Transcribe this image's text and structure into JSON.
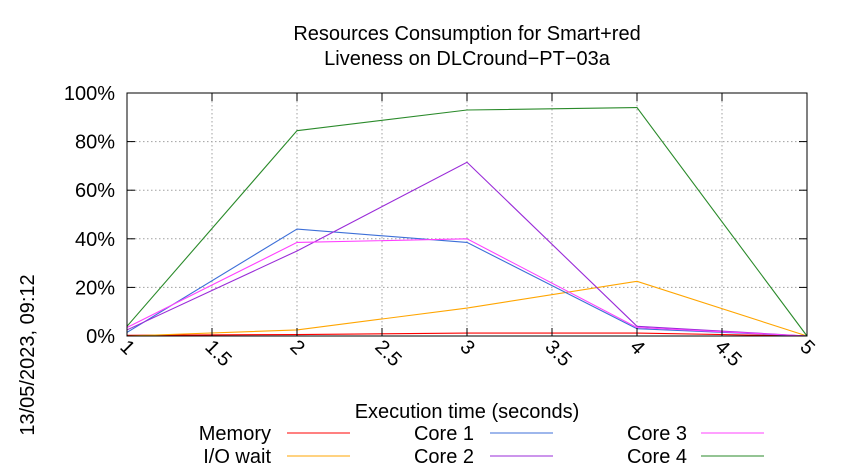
{
  "chart_data": {
    "type": "line",
    "title": [
      "Resources Consumption for Smart+red",
      "Liveness on DLCround−PT−03a"
    ],
    "xlabel": "Execution time (seconds)",
    "ylabel": "",
    "side_label": "13/05/2023, 09:12",
    "xlim": [
      1,
      5
    ],
    "ylim": [
      0,
      100
    ],
    "x_ticks": [
      "1",
      "1.5",
      "2",
      "2.5",
      "3",
      "3.5",
      "4",
      "4.5",
      "5"
    ],
    "y_ticks": [
      "0%",
      "20%",
      "40%",
      "60%",
      "80%",
      "100%"
    ],
    "grid": true,
    "legend_position": "bottom",
    "x": [
      1,
      2,
      3,
      4,
      5
    ],
    "series": [
      {
        "name": "Memory",
        "color": "#ff0000",
        "values": [
          0.3,
          0.6,
          1.2,
          1.2,
          0
        ]
      },
      {
        "name": "I/O wait",
        "color": "#ffa500",
        "values": [
          0,
          2.5,
          11.5,
          22.5,
          0
        ]
      },
      {
        "name": "Core 1",
        "color": "#3d6fd8",
        "values": [
          1.5,
          44,
          38.5,
          3,
          0
        ]
      },
      {
        "name": "Core 2",
        "color": "#9a2bd8",
        "values": [
          2.5,
          35,
          71.5,
          4,
          0
        ]
      },
      {
        "name": "Core 3",
        "color": "#ff40ff",
        "values": [
          3.5,
          38.5,
          40,
          3.5,
          0
        ]
      },
      {
        "name": "Core 4",
        "color": "#2a8a2a",
        "values": [
          4,
          84.5,
          93,
          94,
          0
        ]
      }
    ]
  }
}
